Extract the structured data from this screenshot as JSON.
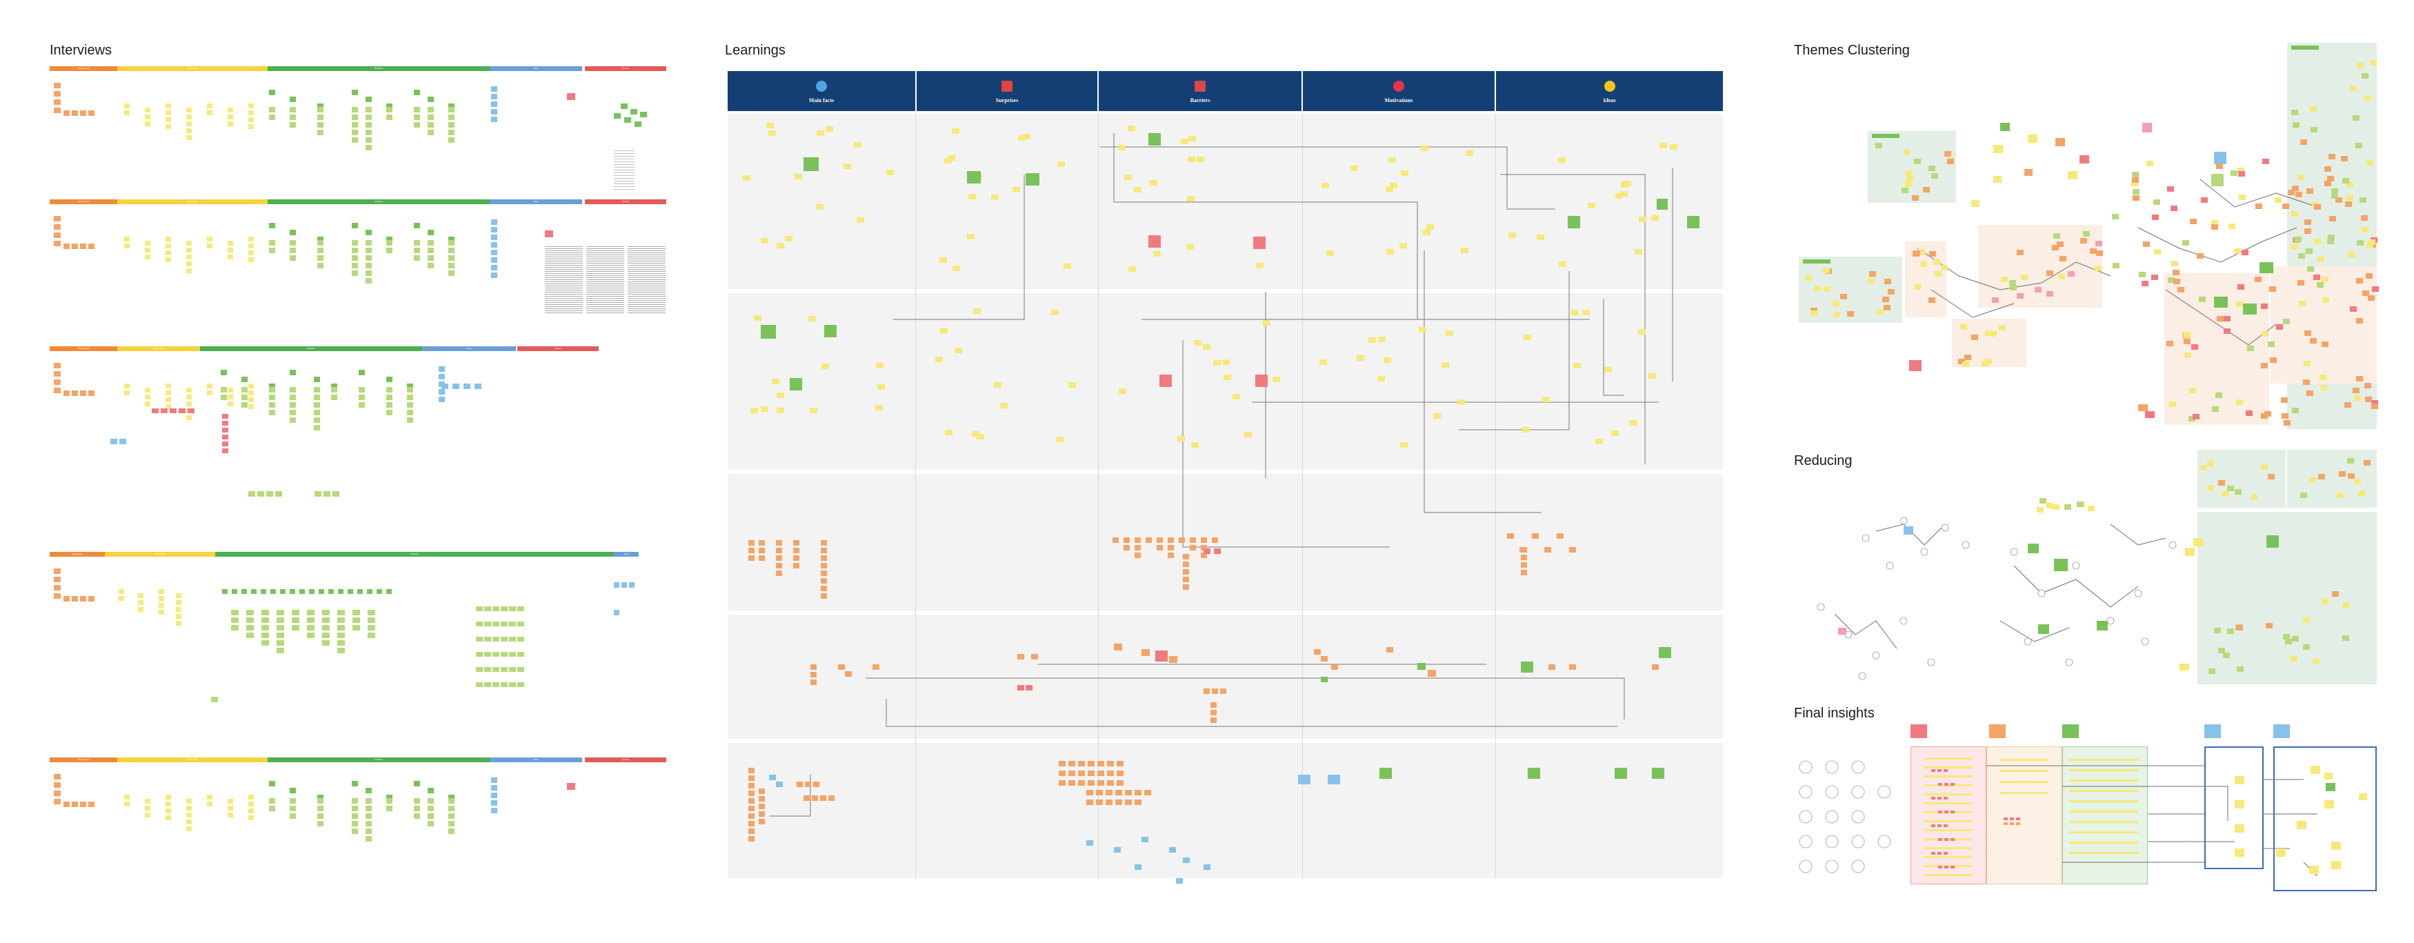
{
  "sections": {
    "interviews": "Interviews",
    "learnings": "Learnings",
    "themes": "Themes Clustering",
    "reducing": "Reducing",
    "final": "Final insights"
  },
  "learnings_columns": [
    {
      "label": "Main facts",
      "icon": "globe-icon",
      "color": "#4fa3e0"
    },
    {
      "label": "Surprises",
      "icon": "gift-icon",
      "color": "#e0443c"
    },
    {
      "label": "Barriers",
      "icon": "bricks-icon",
      "color": "#d9484d"
    },
    {
      "label": "Motivations",
      "icon": "heart-icon",
      "color": "#e8334a"
    },
    {
      "label": "Ideas",
      "icon": "lightbulb-icon",
      "color": "#f5c518"
    }
  ],
  "interview_band_labels": [
    "Background",
    "Pain points",
    "Workflow",
    "Tools",
    "Quotes"
  ],
  "colors": {
    "band_orange": "#f08a3a",
    "band_yellow": "#f5d33c",
    "band_green": "#4caf50",
    "band_blue": "#6a9fd8",
    "band_red": "#e25a5a",
    "lane_header": "#143f75",
    "cluster_green": "#e3efe6",
    "cluster_peach": "#fbeee4"
  }
}
